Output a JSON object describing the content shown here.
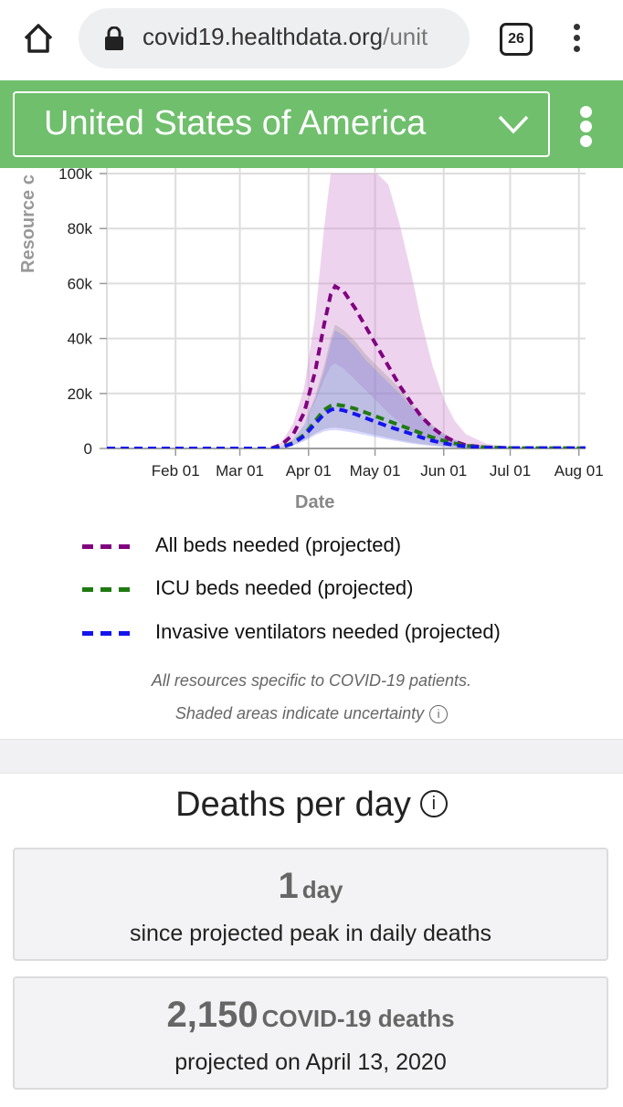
{
  "browser": {
    "url_main": "covid19.healthdata.org",
    "url_rest": "/unit",
    "tab_count": "26"
  },
  "header": {
    "location": "United States of America"
  },
  "chart_data": {
    "type": "line",
    "xlabel": "Date",
    "ylabel": "Resource c",
    "x_ticks": [
      "Feb 01",
      "Mar 01",
      "Apr 01",
      "May 01",
      "Jun 01",
      "Jul 01",
      "Aug 01"
    ],
    "y_ticks": [
      "0",
      "20k",
      "40k",
      "60k",
      "80k",
      "100k"
    ],
    "ylim": [
      0,
      100000
    ],
    "xlim": [
      "2020-01-01",
      "2020-08-04"
    ],
    "grid": true,
    "legend_position": "bottom",
    "series": [
      {
        "name": "All beds needed (projected)",
        "color": "#800080",
        "x": [
          "2020-03-15",
          "2020-03-20",
          "2020-03-25",
          "2020-03-30",
          "2020-04-04",
          "2020-04-08",
          "2020-04-11",
          "2020-04-13",
          "2020-04-17",
          "2020-04-22",
          "2020-04-27",
          "2020-05-02",
          "2020-05-07",
          "2020-05-12",
          "2020-05-17",
          "2020-05-22",
          "2020-05-27",
          "2020-06-01",
          "2020-06-06",
          "2020-06-11",
          "2020-06-20",
          "2020-07-01",
          "2020-08-01"
        ],
        "y": [
          0,
          1500,
          5000,
          13000,
          28000,
          45000,
          56000,
          59000,
          57000,
          51000,
          44000,
          37000,
          30000,
          23000,
          17000,
          11500,
          7500,
          4500,
          2500,
          1200,
          400,
          150,
          100
        ],
        "lower": [
          0,
          1000,
          3500,
          9000,
          17000,
          25000,
          30000,
          31000,
          29000,
          25000,
          21000,
          17000,
          13000,
          9500,
          6500,
          4200,
          2600,
          1500,
          800,
          400,
          150,
          60,
          50
        ],
        "upper": [
          0,
          2500,
          9000,
          22000,
          48000,
          80000,
          100000,
          100000,
          100000,
          100000,
          100000,
          100000,
          96000,
          82000,
          65000,
          46000,
          30000,
          18000,
          10000,
          5200,
          1800,
          400,
          150
        ]
      },
      {
        "name": "ICU beds needed (projected)",
        "color": "#1f7a12",
        "x": [
          "2020-03-15",
          "2020-03-20",
          "2020-03-25",
          "2020-03-30",
          "2020-04-04",
          "2020-04-08",
          "2020-04-11",
          "2020-04-13",
          "2020-04-17",
          "2020-04-22",
          "2020-04-27",
          "2020-05-02",
          "2020-05-07",
          "2020-05-12",
          "2020-05-17",
          "2020-05-22",
          "2020-05-27",
          "2020-06-01",
          "2020-06-06",
          "2020-06-11",
          "2020-06-20",
          "2020-07-01",
          "2020-08-01"
        ],
        "y": [
          0,
          600,
          2000,
          5000,
          10000,
          14000,
          15500,
          16000,
          15500,
          14500,
          13000,
          11500,
          10000,
          8500,
          7000,
          5500,
          4000,
          2800,
          1800,
          1000,
          400,
          150,
          100
        ],
        "lower": [
          0,
          400,
          1200,
          3000,
          5500,
          7000,
          7500,
          7600,
          7200,
          6500,
          5600,
          4700,
          3800,
          3000,
          2200,
          1600,
          1100,
          700,
          450,
          250,
          100,
          50,
          40
        ],
        "upper": [
          0,
          900,
          3500,
          9000,
          19000,
          30000,
          40000,
          45000,
          43000,
          39000,
          34000,
          30000,
          26000,
          22000,
          17000,
          12500,
          8500,
          5500,
          3300,
          1800,
          700,
          250,
          120
        ]
      },
      {
        "name": "Invasive ventilators needed (projected)",
        "color": "#1414ee",
        "x": [
          "2020-03-15",
          "2020-03-20",
          "2020-03-25",
          "2020-03-30",
          "2020-04-04",
          "2020-04-08",
          "2020-04-11",
          "2020-04-13",
          "2020-04-17",
          "2020-04-22",
          "2020-04-27",
          "2020-05-02",
          "2020-05-07",
          "2020-05-12",
          "2020-05-17",
          "2020-05-22",
          "2020-05-27",
          "2020-06-01",
          "2020-06-06",
          "2020-06-11",
          "2020-06-20",
          "2020-07-01",
          "2020-08-01"
        ],
        "y": [
          0,
          500,
          1800,
          4500,
          9000,
          12500,
          14000,
          14500,
          13800,
          12500,
          11000,
          9500,
          8000,
          6700,
          5400,
          4000,
          2800,
          1900,
          1200,
          700,
          300,
          120,
          80
        ],
        "lower": [
          0,
          350,
          1000,
          2600,
          4800,
          6200,
          6600,
          6700,
          6300,
          5600,
          4800,
          4000,
          3200,
          2500,
          1800,
          1300,
          900,
          550,
          350,
          200,
          80,
          40,
          30
        ],
        "upper": [
          0,
          800,
          3200,
          8500,
          18000,
          28000,
          38000,
          43000,
          41000,
          37000,
          32000,
          28000,
          24000,
          20000,
          15500,
          11500,
          7800,
          5000,
          3000,
          1600,
          600,
          220,
          100
        ]
      }
    ]
  },
  "legend": [
    {
      "label": "All beds needed (projected)",
      "color": "#800080"
    },
    {
      "label": "ICU beds needed (projected)",
      "color": "#1f7a12"
    },
    {
      "label": "Invasive ventilators needed (projected)",
      "color": "#1414ee"
    }
  ],
  "notes": {
    "line1": "All resources specific to COVID-19 patients.",
    "line2": "Shaded areas indicate uncertainty"
  },
  "deaths": {
    "title": "Deaths per day",
    "card1": {
      "value": "1",
      "unit": "day",
      "caption": "since projected peak in daily deaths"
    },
    "card2": {
      "value": "2,150",
      "unit": "COVID-19 deaths",
      "caption": "projected on April 13, 2020"
    }
  }
}
